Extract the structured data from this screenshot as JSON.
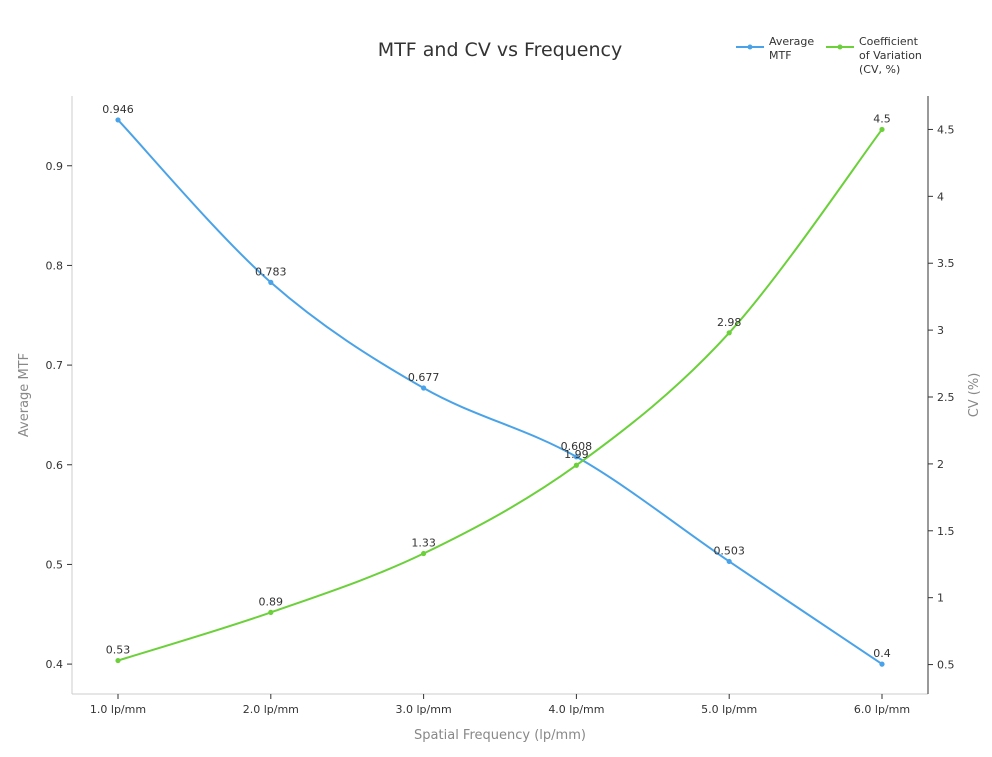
{
  "chart_data": {
    "type": "line",
    "title": "MTF and CV vs Frequency",
    "xlabel": "Spatial Frequency (lp/mm)",
    "categories": [
      "1.0 lp/mm",
      "2.0 lp/mm",
      "3.0 lp/mm",
      "4.0 lp/mm",
      "5.0 lp/mm",
      "6.0 lp/mm"
    ],
    "y_left": {
      "label": "Average MTF",
      "ylim": [
        0.37,
        0.97
      ],
      "ticks": [
        0.4,
        0.5,
        0.6,
        0.7,
        0.8,
        0.9
      ],
      "tick_labels": [
        "0.4",
        "0.5",
        "0.6",
        "0.7",
        "0.8",
        "0.9"
      ]
    },
    "y_right": {
      "label": "CV (%)",
      "ylim": [
        0.28,
        4.75
      ],
      "ticks": [
        0.5,
        1,
        1.5,
        2,
        2.5,
        3,
        3.5,
        4,
        4.5
      ],
      "tick_labels": [
        "0.5",
        "1",
        "1.5",
        "2",
        "2.5",
        "3",
        "3.5",
        "4",
        "4.5"
      ]
    },
    "series": [
      {
        "name": "Average MTF",
        "legend_lines": [
          "Average",
          "MTF"
        ],
        "axis": "left",
        "color": "#4aa3e8",
        "values": [
          0.946,
          0.783,
          0.677,
          0.608,
          0.503,
          0.4
        ],
        "labels": [
          "0.946",
          "0.783",
          "0.677",
          "0.608",
          "0.503",
          "0.4"
        ]
      },
      {
        "name": "Coefficient of Variation (CV, %)",
        "legend_lines": [
          "Coefficient",
          "of Variation",
          "(CV, %)"
        ],
        "axis": "right",
        "color": "#6bd03a",
        "values": [
          0.53,
          0.89,
          1.33,
          1.99,
          2.98,
          4.5
        ],
        "labels": [
          "0.53",
          "0.89",
          "1.33",
          "1.99",
          "2.98",
          "4.5"
        ]
      }
    ],
    "grid": false,
    "legend_position": "top-right"
  }
}
